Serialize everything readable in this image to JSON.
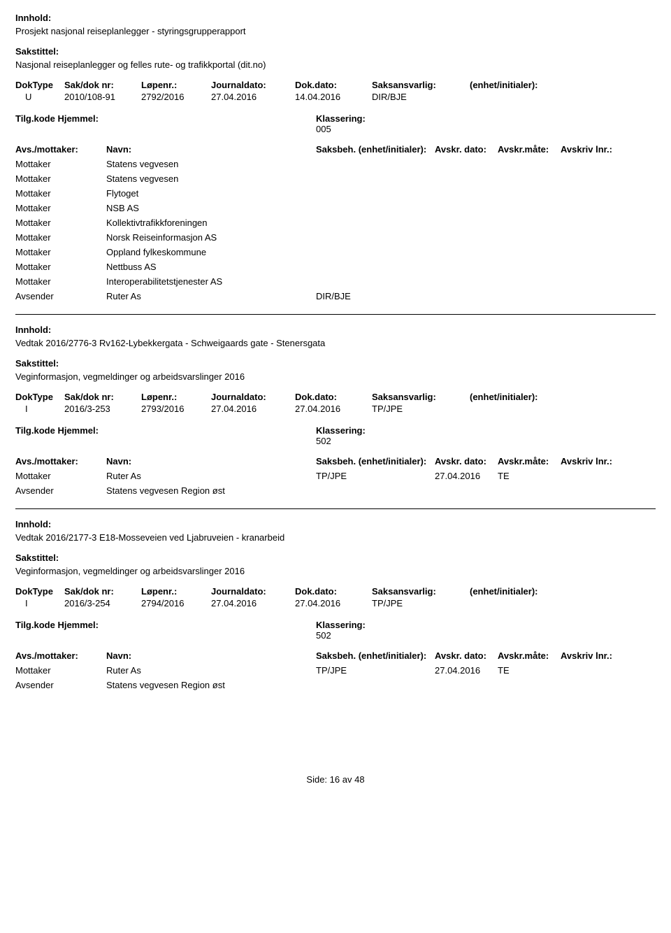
{
  "labels": {
    "innhold": "Innhold:",
    "sakstittel": "Sakstittel:",
    "dokType": "DokType",
    "sakDokNr": "Sak/dok nr:",
    "lopenr": "Løpenr.:",
    "journaldato": "Journaldato:",
    "dokDato": "Dok.dato:",
    "saksansvarlig": "Saksansvarlig:",
    "enhetInitialer": "(enhet/initialer):",
    "tilgKode": "Tilg.kode",
    "hjemmel": "Hjemmel:",
    "klassering": "Klassering:",
    "avsMottaker": "Avs./mottaker:",
    "navn": "Navn:",
    "saksbeh": "Saksbeh.",
    "saksbehEnhet": "(enhet/initialer):",
    "avskrDato": "Avskr. dato:",
    "avskrMate": "Avskr.måte:",
    "avskrivLnr": "Avskriv lnr.:",
    "mottaker": "Mottaker",
    "avsender": "Avsender"
  },
  "records": [
    {
      "innhold": "Prosjekt nasjonal reiseplanlegger - styringsgrupperapport",
      "sakstittel": "Nasjonal reiseplanlegger og felles rute- og trafikkportal (dit.no)",
      "dokType": "U",
      "sakDokNr": "2010/108-91",
      "lopenr": "2792/2016",
      "journaldato": "27.04.2016",
      "dokDato": "14.04.2016",
      "saksansvarlig": "DIR/BJE",
      "klassering": "005",
      "parties": [
        {
          "role": "Mottaker",
          "name": "Statens vegvesen",
          "saksbeh": "",
          "avskrDato": "",
          "avskrMate": ""
        },
        {
          "role": "Mottaker",
          "name": "Statens vegvesen",
          "saksbeh": "",
          "avskrDato": "",
          "avskrMate": ""
        },
        {
          "role": "Mottaker",
          "name": "Flytoget",
          "saksbeh": "",
          "avskrDato": "",
          "avskrMate": ""
        },
        {
          "role": "Mottaker",
          "name": "NSB AS",
          "saksbeh": "",
          "avskrDato": "",
          "avskrMate": ""
        },
        {
          "role": "Mottaker",
          "name": "Kollektivtrafikkforeningen",
          "saksbeh": "",
          "avskrDato": "",
          "avskrMate": ""
        },
        {
          "role": "Mottaker",
          "name": "Norsk Reiseinformasjon AS",
          "saksbeh": "",
          "avskrDato": "",
          "avskrMate": ""
        },
        {
          "role": "Mottaker",
          "name": "Oppland fylkeskommune",
          "saksbeh": "",
          "avskrDato": "",
          "avskrMate": ""
        },
        {
          "role": "Mottaker",
          "name": "Nettbuss AS",
          "saksbeh": "",
          "avskrDato": "",
          "avskrMate": ""
        },
        {
          "role": "Mottaker",
          "name": "Interoperabilitetstjenester AS",
          "saksbeh": "",
          "avskrDato": "",
          "avskrMate": ""
        },
        {
          "role": "Avsender",
          "name": "Ruter As",
          "saksbeh": "DIR/BJE",
          "avskrDato": "",
          "avskrMate": ""
        }
      ]
    },
    {
      "innhold": "Vedtak 2016/2776-3 Rv162-Lybekkergata - Schweigaards gate - Stenersgata",
      "sakstittel": "Veginformasjon, vegmeldinger og arbeidsvarslinger 2016",
      "dokType": "I",
      "sakDokNr": "2016/3-253",
      "lopenr": "2793/2016",
      "journaldato": "27.04.2016",
      "dokDato": "27.04.2016",
      "saksansvarlig": "TP/JPE",
      "klassering": "502",
      "parties": [
        {
          "role": "Mottaker",
          "name": "Ruter As",
          "saksbeh": "TP/JPE",
          "avskrDato": "27.04.2016",
          "avskrMate": "TE"
        },
        {
          "role": "Avsender",
          "name": "Statens vegvesen Region øst",
          "saksbeh": "",
          "avskrDato": "",
          "avskrMate": ""
        }
      ]
    },
    {
      "innhold": "Vedtak 2016/2177-3 E18-Mosseveien ved Ljabruveien - kranarbeid",
      "sakstittel": "Veginformasjon, vegmeldinger og arbeidsvarslinger 2016",
      "dokType": "I",
      "sakDokNr": "2016/3-254",
      "lopenr": "2794/2016",
      "journaldato": "27.04.2016",
      "dokDato": "27.04.2016",
      "saksansvarlig": "TP/JPE",
      "klassering": "502",
      "parties": [
        {
          "role": "Mottaker",
          "name": "Ruter As",
          "saksbeh": "TP/JPE",
          "avskrDato": "27.04.2016",
          "avskrMate": "TE"
        },
        {
          "role": "Avsender",
          "name": "Statens vegvesen Region øst",
          "saksbeh": "",
          "avskrDato": "",
          "avskrMate": ""
        }
      ]
    }
  ],
  "footer": {
    "prefix": "Side:",
    "page": "16",
    "of": "av",
    "total": "48"
  }
}
